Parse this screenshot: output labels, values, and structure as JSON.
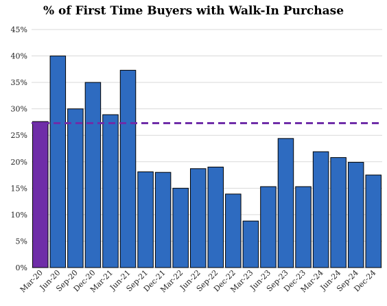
{
  "chart_data": {
    "type": "bar",
    "title": "% of First Time Buyers with Walk-In Purchase",
    "categories": [
      "Mar-20",
      "Jun-20",
      "Sep-20",
      "Dec-20",
      "Mar-21",
      "Jun-21",
      "Sep-21",
      "Dec-21",
      "Mar-22",
      "Jun-22",
      "Sep-22",
      "Dec-22",
      "Mar-23",
      "Jun-23",
      "Sep-23",
      "Dec-23",
      "Mar-24",
      "Jun-24",
      "Sep-24",
      "Dec-24"
    ],
    "values": [
      27.6,
      40.0,
      30.0,
      35.0,
      28.9,
      37.3,
      18.1,
      18.0,
      15.0,
      18.7,
      19.0,
      13.9,
      8.8,
      15.3,
      24.4,
      15.3,
      21.9,
      20.8,
      19.9,
      17.5
    ],
    "ylim": [
      0,
      45
    ],
    "yticks": [
      0,
      5,
      10,
      15,
      20,
      25,
      30,
      35,
      40,
      45
    ],
    "ytick_labels": [
      "0%",
      "5%",
      "10%",
      "15%",
      "20%",
      "25%",
      "30%",
      "35%",
      "40%",
      "45%"
    ],
    "reference_line": 27.3,
    "highlight_index": 0,
    "colors": {
      "bar": "#2e6bc0",
      "highlight_bar": "#6f2da8",
      "reference_line": "#6f2da8",
      "grid": "#d9d9d9"
    },
    "grid": true,
    "xlabel": "",
    "ylabel": ""
  }
}
